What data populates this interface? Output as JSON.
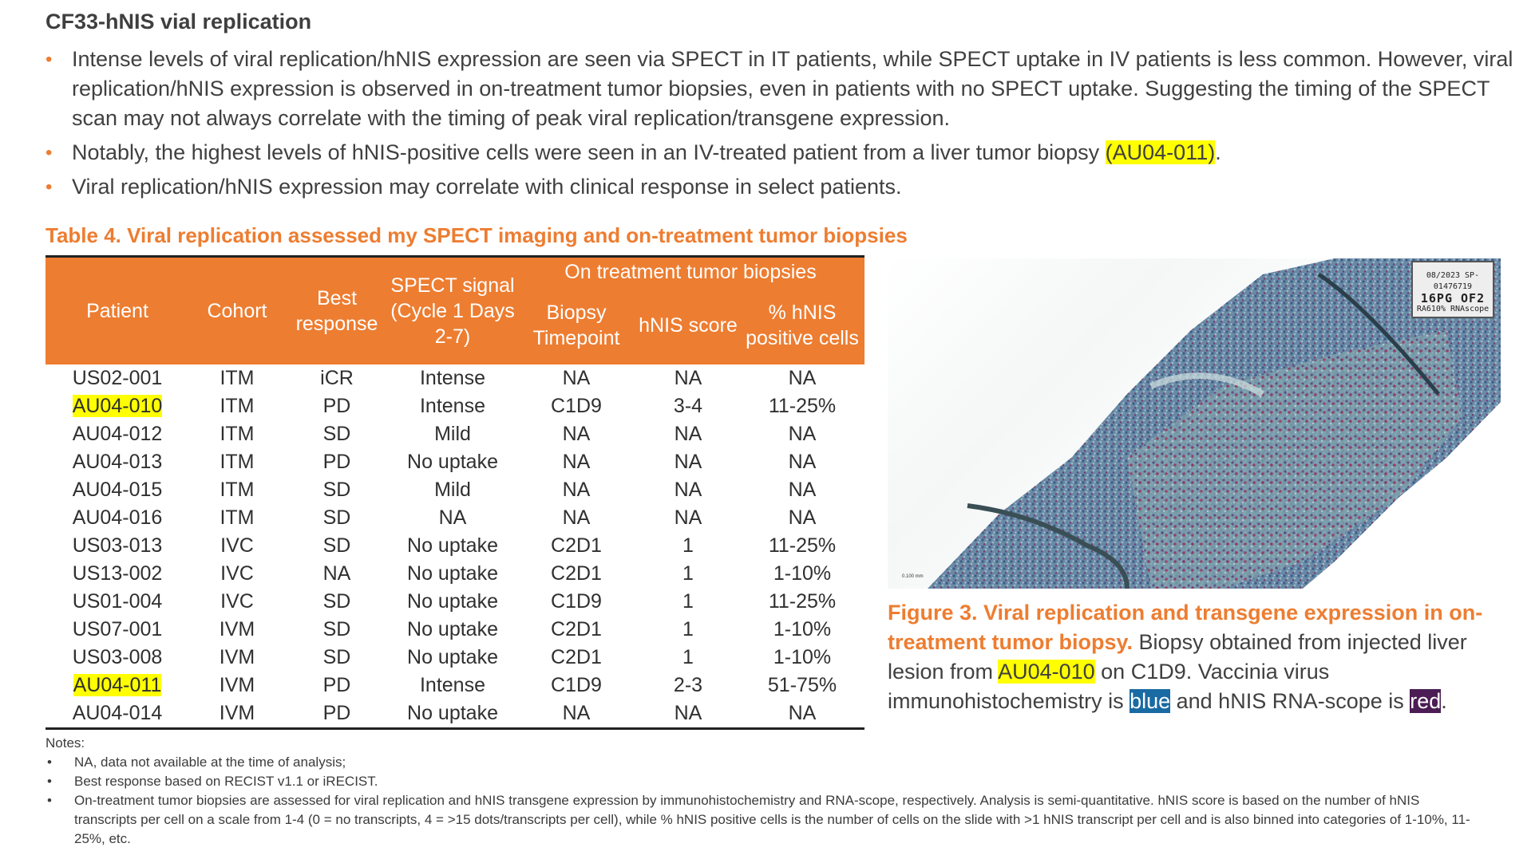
{
  "title": "CF33-hNIS vial replication",
  "bullets": [
    {
      "text_a": "Intense levels of viral replication/hNIS expression are seen via SPECT in IT patients, while SPECT uptake in IV patients is less common. However, viral replication/hNIS expression is observed in on-treatment tumor biopsies, even in patients with no SPECT uptake. Suggesting the timing of the SPECT scan may not always correlate with the timing of peak viral replication/transgene expression."
    },
    {
      "text_a": "Notably, the highest levels of hNIS-positive cells were seen in an IV-treated patient from a liver tumor biopsy ",
      "highlight": "(AU04-011)",
      "text_b": "."
    },
    {
      "text_a": "Viral replication/hNIS expression may correlate with clinical response in select patients."
    }
  ],
  "table": {
    "title": "Table 4. Viral replication assessed my SPECT imaging and on-treatment tumor biopsies",
    "group_header": "On treatment tumor biopsies",
    "headers": [
      "Patient",
      "Cohort",
      "Best response",
      "SPECT signal (Cycle 1 Days 2-7)",
      "Biopsy Timepoint",
      "hNIS score",
      "% hNIS positive cells"
    ],
    "rows": [
      [
        "US02-001",
        "ITM",
        "iCR",
        "Intense",
        "NA",
        "NA",
        "NA"
      ],
      [
        "AU04-010",
        "ITM",
        "PD",
        "Intense",
        "C1D9",
        "3-4",
        "11-25%"
      ],
      [
        "AU04-012",
        "ITM",
        "SD",
        "Mild",
        "NA",
        "NA",
        "NA"
      ],
      [
        "AU04-013",
        "ITM",
        "PD",
        "No uptake",
        "NA",
        "NA",
        "NA"
      ],
      [
        "AU04-015",
        "ITM",
        "SD",
        "Mild",
        "NA",
        "NA",
        "NA"
      ],
      [
        "AU04-016",
        "ITM",
        "SD",
        "NA",
        "NA",
        "NA",
        "NA"
      ],
      [
        "US03-013",
        "IVC",
        "SD",
        "No uptake",
        "C2D1",
        "1",
        "11-25%"
      ],
      [
        "US13-002",
        "IVC",
        "NA",
        "No uptake",
        "C2D1",
        "1",
        "1-10%"
      ],
      [
        "US01-004",
        "IVC",
        "SD",
        "No uptake",
        "C1D9",
        "1",
        "11-25%"
      ],
      [
        "US07-001",
        "IVM",
        "SD",
        "No uptake",
        "C2D1",
        "1",
        "1-10%"
      ],
      [
        "US03-008",
        "IVM",
        "SD",
        "No uptake",
        "C2D1",
        "1",
        "1-10%"
      ],
      [
        "AU04-011",
        "IVM",
        "PD",
        "Intense",
        "C1D9",
        "2-3",
        "51-75%"
      ],
      [
        "AU04-014",
        "IVM",
        "PD",
        "No uptake",
        "NA",
        "NA",
        "NA"
      ]
    ],
    "highlighted_rows": [
      1,
      11
    ]
  },
  "figure": {
    "slide_label_top": "08/2023  SP-01476719",
    "slide_label_main": "16PG OF2",
    "slide_label_bottom": "RA610%  RNAscope",
    "scale_bar": "0.100 mm"
  },
  "caption": {
    "title": "Figure 3. Viral replication and transgene expression in on-treatment tumor biopsy.",
    "text_a": " Biopsy obtained from injected liver lesion from ",
    "highlight": "AU04-010",
    "text_b": " on C1D9. Vaccinia virus immunohistochemistry is ",
    "blue_word": "blue",
    "text_c": " and hNIS RNA-scope is ",
    "red_word": "red",
    "text_d": "."
  },
  "notes": {
    "heading": "Notes:",
    "items": [
      "NA, data not available at the time of analysis;",
      "Best response based on RECIST v1.1 or iRECIST.",
      "On-treatment tumor biopsies are assessed for viral replication and hNIS transgene expression by immunohistochemistry and RNA-scope, respectively. Analysis is semi-quantitative. hNIS score is based on the number of hNIS transcripts per cell on a scale from 1-4 (0 = no transcripts, 4 = >15 dots/transcripts per cell), while % hNIS positive cells is the number of cells on the slide with >1 hNIS transcript per cell and is also binned into categories of 1-10%, 11-25%, etc."
    ]
  },
  "colors": {
    "accent": "#ed7d31",
    "highlight": "#ffff00",
    "blue_tag": "#1a6aa3",
    "red_tag": "#4b1d54"
  }
}
